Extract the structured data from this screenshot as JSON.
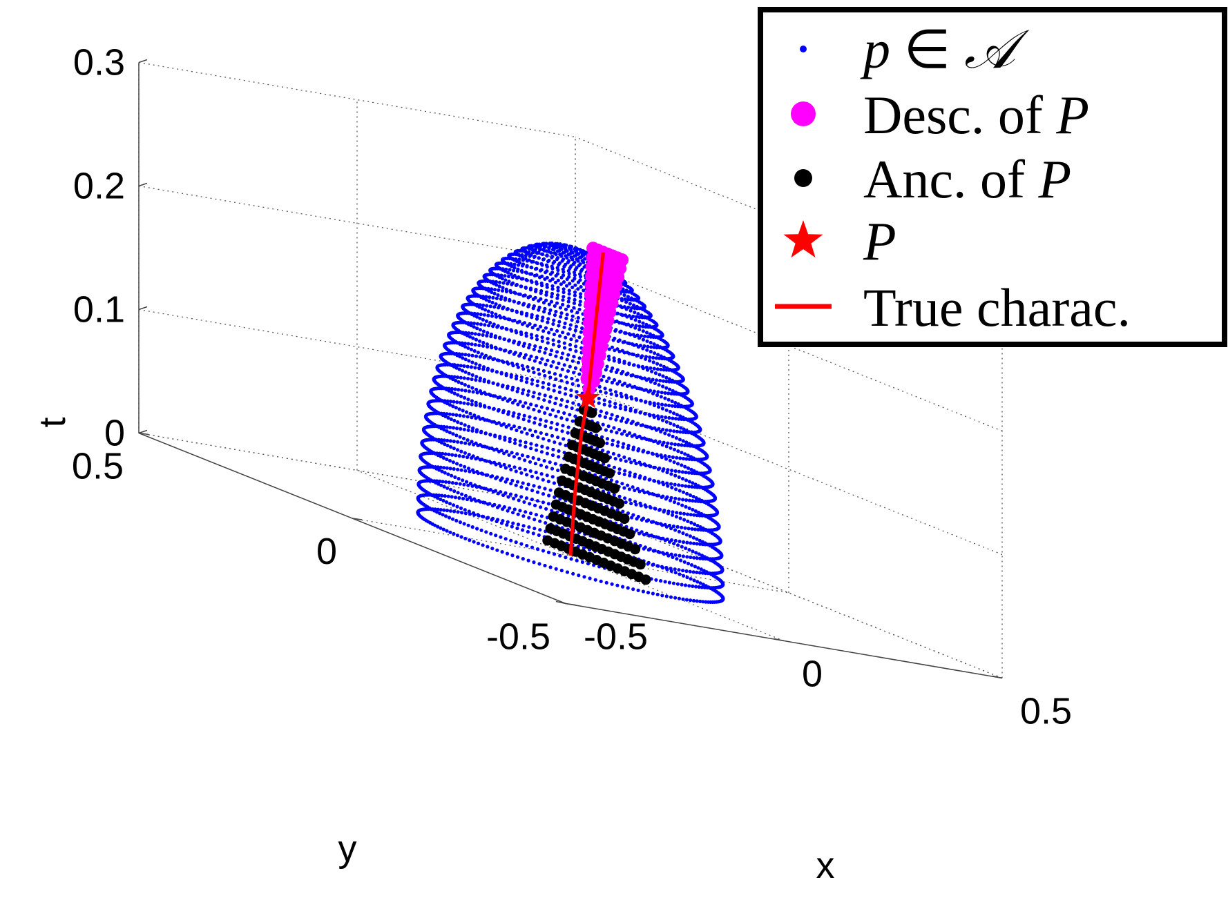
{
  "chart_data": {
    "type": "scatter",
    "projection": "3d",
    "xlabel": "x",
    "ylabel": "y",
    "zlabel": "t",
    "xlim": [
      -0.5,
      0.5
    ],
    "ylim": [
      -0.5,
      0.5
    ],
    "zlim": [
      0,
      0.3
    ],
    "x_ticks": [
      "-0.5",
      "0",
      "0.5"
    ],
    "y_ticks": [
      "-0.5",
      "0",
      "0.5"
    ],
    "z_ticks": [
      "0",
      "0.1",
      "0.2",
      "0.3"
    ],
    "grid": true,
    "legend_position": "top-right",
    "colors": {
      "domain_points": "#0000ff",
      "descendants": "#ff00ff",
      "ancestors": "#000000",
      "point_P": "#ff0000",
      "characteristic": "#ff0000"
    },
    "series": [
      {
        "name": "p ∈ 𝒜",
        "kind": "points",
        "surface": "closed dome of points",
        "base_radius": 0.25,
        "height": 0.25
      },
      {
        "name": "Desc. of P",
        "kind": "points",
        "t_range": [
          0.13,
          0.25
        ]
      },
      {
        "name": "Anc. of P",
        "kind": "points",
        "t_range": [
          0,
          0.13
        ]
      },
      {
        "name": "P",
        "kind": "marker",
        "x": 0.04,
        "y": 0.0,
        "t": 0.13
      },
      {
        "name": "True charac.",
        "kind": "line",
        "points": [
          {
            "x": 0.0,
            "y": 0.0,
            "t": 0.0
          },
          {
            "x": 0.01,
            "y": 0.0,
            "t": 0.05
          },
          {
            "x": 0.025,
            "y": 0.0,
            "t": 0.1
          },
          {
            "x": 0.04,
            "y": 0.0,
            "t": 0.13
          },
          {
            "x": 0.06,
            "y": 0.0,
            "t": 0.2
          },
          {
            "x": 0.075,
            "y": 0.0,
            "t": 0.25
          }
        ]
      }
    ],
    "legend": {
      "entries": [
        {
          "math": "p",
          "rel": " ∈ ",
          "set": "𝒜"
        },
        {
          "text": "Desc. of ",
          "math": "P"
        },
        {
          "text": "Anc. of ",
          "math": "P"
        },
        {
          "text": "",
          "math": "P"
        },
        {
          "text": "True charac.",
          "math": ""
        }
      ]
    }
  }
}
